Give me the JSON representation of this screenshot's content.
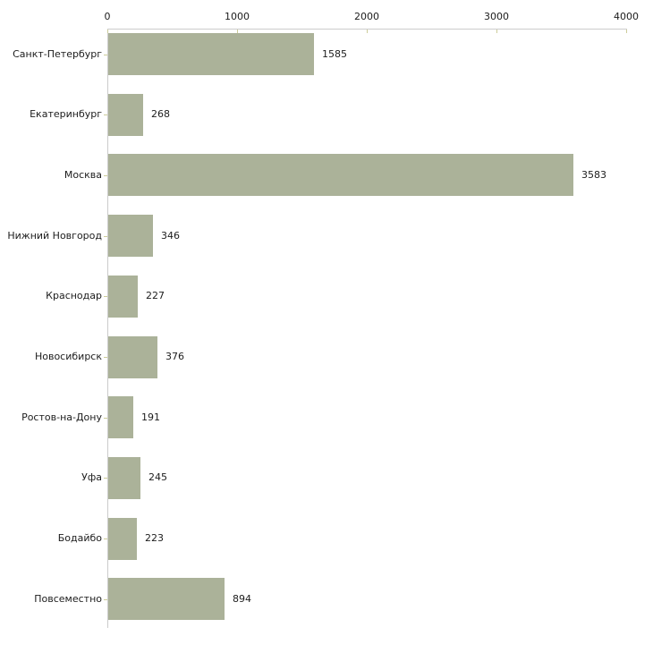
{
  "chart_data": {
    "type": "bar",
    "orientation": "horizontal",
    "title": "",
    "xlabel": "",
    "ylabel": "",
    "categories": [
      "Санкт-Петербург",
      "Екатеринбург",
      "Москва",
      "Нижний Новгород",
      "Краснодар",
      "Новосибирск",
      "Ростов-на-Дону",
      "Уфа",
      "Бодайбо",
      "Повсеместно"
    ],
    "values": [
      1585,
      268,
      3583,
      346,
      227,
      376,
      191,
      245,
      223,
      894
    ],
    "x_ticks": [
      0,
      1000,
      2000,
      3000,
      4000
    ],
    "xlim": [
      0,
      4000
    ],
    "grid": false,
    "legend": "none",
    "bar_color": "#abb299",
    "axis_color": "#cccccc",
    "tick_color": "#cccc99",
    "text_color": "#1c1c1c",
    "background_color": "#ffffff"
  }
}
